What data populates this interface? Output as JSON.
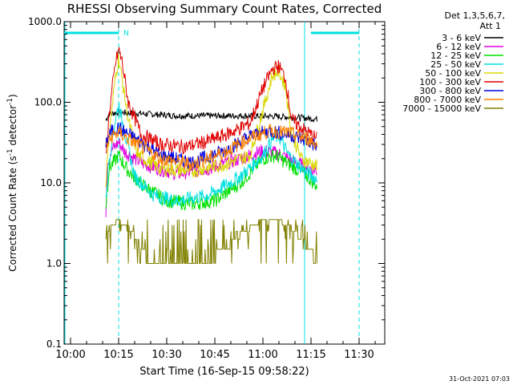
{
  "chart_data": {
    "type": "line",
    "title": "RHESSI Observing Summary Count Rates, Corrected",
    "xlabel": "Start Time (16-Sep-15 09:58:22)",
    "ylabel_main": "Corrected Count Rate (s",
    "ylabel_sup1": "-1",
    "ylabel_mid": " detector",
    "ylabel_sup2": "-1",
    "ylabel_end": ")",
    "y_scale": "log",
    "ylim": [
      0.1,
      1000
    ],
    "xlim_minutes": [
      0,
      100
    ],
    "x_tick_minutes": [
      2,
      17,
      32,
      47,
      62,
      77,
      92
    ],
    "x_tick_labels": [
      "10:00",
      "10:15",
      "10:30",
      "10:45",
      "11:00",
      "11:15",
      "11:30"
    ],
    "y_ticks": [
      0.1,
      1,
      10,
      100,
      1000
    ],
    "y_tick_labels": [
      "0.1",
      "1.0",
      "10.0",
      "100.0",
      "1000.0"
    ],
    "legend_header": [
      "Det 1,3,5,6,7,",
      "Att 1"
    ],
    "legend_position": "top-right outside",
    "footer_timestamp": "31-Oct-2021 07:03",
    "orbit_markers": {
      "solid_cyan_minutes": [
        0,
        75
      ],
      "dashed_cyan_minutes": [
        17,
        92
      ],
      "flag_label": "N",
      "flag_bars_minutes": [
        [
          0,
          17
        ],
        [
          77,
          92
        ]
      ],
      "flag_label_minute": 18.5
    },
    "series": [
      {
        "name": "3 - 6 keV",
        "color": "#000000",
        "points": [
          [
            13,
            60
          ],
          [
            14,
            72
          ],
          [
            17,
            75
          ],
          [
            25,
            72
          ],
          [
            35,
            68
          ],
          [
            45,
            68
          ],
          [
            55,
            68
          ],
          [
            65,
            67
          ],
          [
            72,
            65
          ],
          [
            79,
            62
          ]
        ]
      },
      {
        "name": "6 - 12 keV",
        "color": "#e000e0",
        "points": [
          [
            13,
            4
          ],
          [
            13.5,
            18
          ],
          [
            15,
            26
          ],
          [
            17,
            32
          ],
          [
            19,
            24
          ],
          [
            25,
            17
          ],
          [
            35,
            13
          ],
          [
            45,
            15
          ],
          [
            55,
            20
          ],
          [
            62,
            25
          ],
          [
            67,
            23
          ],
          [
            72,
            18
          ],
          [
            79,
            14
          ]
        ]
      },
      {
        "name": "12 - 25 keV",
        "color": "#00e000",
        "points": [
          [
            13,
            5
          ],
          [
            14,
            15
          ],
          [
            17,
            22
          ],
          [
            20,
            14
          ],
          [
            25,
            9
          ],
          [
            32,
            6
          ],
          [
            40,
            5.5
          ],
          [
            47,
            6
          ],
          [
            55,
            10
          ],
          [
            62,
            20
          ],
          [
            66,
            22
          ],
          [
            70,
            17
          ],
          [
            75,
            13
          ],
          [
            79,
            9
          ]
        ]
      },
      {
        "name": "25 - 50 keV",
        "color": "#00e0e0",
        "points": [
          [
            13,
            6
          ],
          [
            14,
            20
          ],
          [
            16,
            60
          ],
          [
            17,
            95
          ],
          [
            19,
            40
          ],
          [
            22,
            12
          ],
          [
            28,
            7
          ],
          [
            35,
            6
          ],
          [
            45,
            7
          ],
          [
            55,
            12
          ],
          [
            62,
            22
          ],
          [
            65,
            35
          ],
          [
            67,
            38
          ],
          [
            70,
            22
          ],
          [
            75,
            14
          ],
          [
            79,
            11
          ]
        ]
      },
      {
        "name": "50 - 100 keV",
        "color": "#d8d800",
        "points": [
          [
            13,
            10
          ],
          [
            14,
            40
          ],
          [
            16,
            200
          ],
          [
            17,
            360
          ],
          [
            18,
            200
          ],
          [
            20,
            60
          ],
          [
            23,
            22
          ],
          [
            30,
            15
          ],
          [
            40,
            14
          ],
          [
            50,
            17
          ],
          [
            58,
            22
          ],
          [
            62,
            80
          ],
          [
            65,
            220
          ],
          [
            67,
            240
          ],
          [
            69,
            160
          ],
          [
            71,
            40
          ],
          [
            74,
            20
          ],
          [
            79,
            16
          ]
        ]
      },
      {
        "name": "100 - 300 keV",
        "color": "#e00000",
        "points": [
          [
            13,
            20
          ],
          [
            14,
            70
          ],
          [
            16,
            300
          ],
          [
            17,
            450
          ],
          [
            18,
            330
          ],
          [
            20,
            100
          ],
          [
            24,
            40
          ],
          [
            30,
            30
          ],
          [
            38,
            28
          ],
          [
            45,
            33
          ],
          [
            52,
            42
          ],
          [
            58,
            55
          ],
          [
            62,
            150
          ],
          [
            65,
            260
          ],
          [
            67,
            280
          ],
          [
            69,
            200
          ],
          [
            71,
            60
          ],
          [
            75,
            45
          ],
          [
            79,
            35
          ]
        ]
      },
      {
        "name": "300 - 800 keV",
        "color": "#0000e0",
        "points": [
          [
            13,
            32
          ],
          [
            15,
            45
          ],
          [
            17,
            48
          ],
          [
            21,
            38
          ],
          [
            30,
            22
          ],
          [
            40,
            18
          ],
          [
            50,
            25
          ],
          [
            58,
            38
          ],
          [
            64,
            44
          ],
          [
            70,
            40
          ],
          [
            76,
            33
          ],
          [
            79,
            28
          ]
        ]
      },
      {
        "name": "800 - 7000 keV",
        "color": "#ff8000",
        "points": [
          [
            13,
            28
          ],
          [
            15,
            38
          ],
          [
            17,
            42
          ],
          [
            21,
            33
          ],
          [
            30,
            20
          ],
          [
            40,
            17
          ],
          [
            50,
            24
          ],
          [
            58,
            36
          ],
          [
            64,
            44
          ],
          [
            70,
            42
          ],
          [
            76,
            35
          ],
          [
            79,
            30
          ]
        ]
      },
      {
        "name": "7000 - 15000 keV",
        "color": "#808000",
        "points": [
          [
            13,
            2.2
          ],
          [
            15,
            3
          ],
          [
            17,
            3.5
          ],
          [
            19,
            3
          ],
          [
            21,
            2.5
          ],
          [
            24,
            1.6
          ],
          [
            27,
            1
          ],
          [
            32,
            1
          ],
          [
            38,
            1
          ],
          [
            44,
            1
          ],
          [
            50,
            1.5
          ],
          [
            56,
            2.5
          ],
          [
            62,
            3.5
          ],
          [
            66,
            3.5
          ],
          [
            70,
            3
          ],
          [
            74,
            2
          ],
          [
            78,
            1.2
          ],
          [
            79,
            1
          ]
        ]
      }
    ]
  }
}
